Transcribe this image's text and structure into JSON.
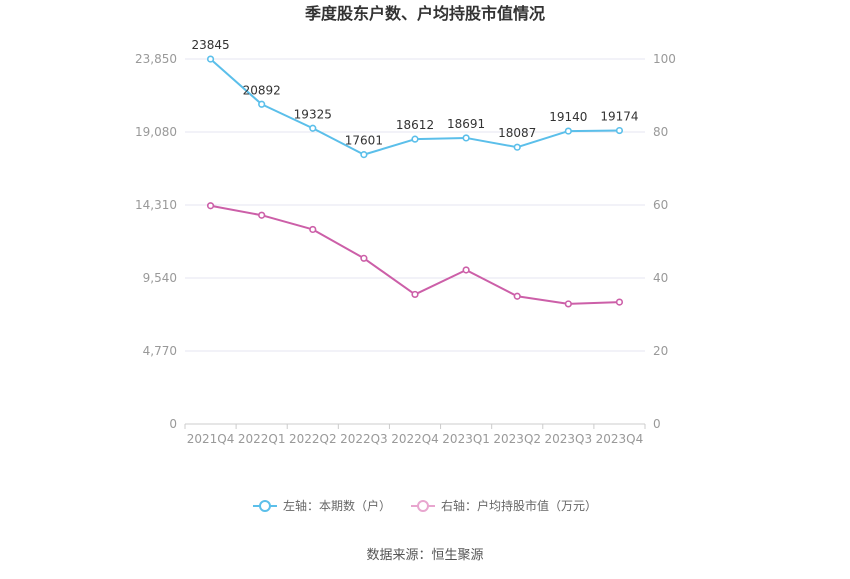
{
  "chart_data": {
    "type": "line",
    "title": "季度股东户数、户均持股市值情况",
    "categories": [
      "2021Q4",
      "2022Q1",
      "2022Q2",
      "2022Q3",
      "2022Q4",
      "2023Q1",
      "2023Q2",
      "2023Q3",
      "2023Q4"
    ],
    "left_axis": {
      "ticks": [
        "0",
        "4,770",
        "9,540",
        "14,310",
        "19,080",
        "23,850"
      ],
      "ylim": [
        0,
        23850
      ]
    },
    "right_axis": {
      "ticks": [
        "0",
        "20",
        "40",
        "60",
        "80",
        "100"
      ],
      "ylim": [
        0,
        100
      ]
    },
    "series": [
      {
        "name": "左轴：本期数（户）",
        "axis": "left",
        "color": "#5bbfea",
        "values": [
          23845,
          20892,
          19325,
          17601,
          18612,
          18691,
          18087,
          19140,
          19174
        ],
        "labels": [
          "23845",
          "20892",
          "19325",
          "17601",
          "18612",
          "18691",
          "18087",
          "19140",
          "19174"
        ]
      },
      {
        "name": "右轴：户均持股市值（万元）",
        "axis": "right",
        "color": "#cc5fa8",
        "legend_color": "#e8a6cf",
        "values": [
          59.8,
          57.2,
          53.3,
          45.4,
          35.5,
          42.2,
          35.0,
          32.9,
          33.4
        ]
      }
    ],
    "grid": true,
    "legend_position": "bottom"
  },
  "source": "数据来源：恒生聚源"
}
